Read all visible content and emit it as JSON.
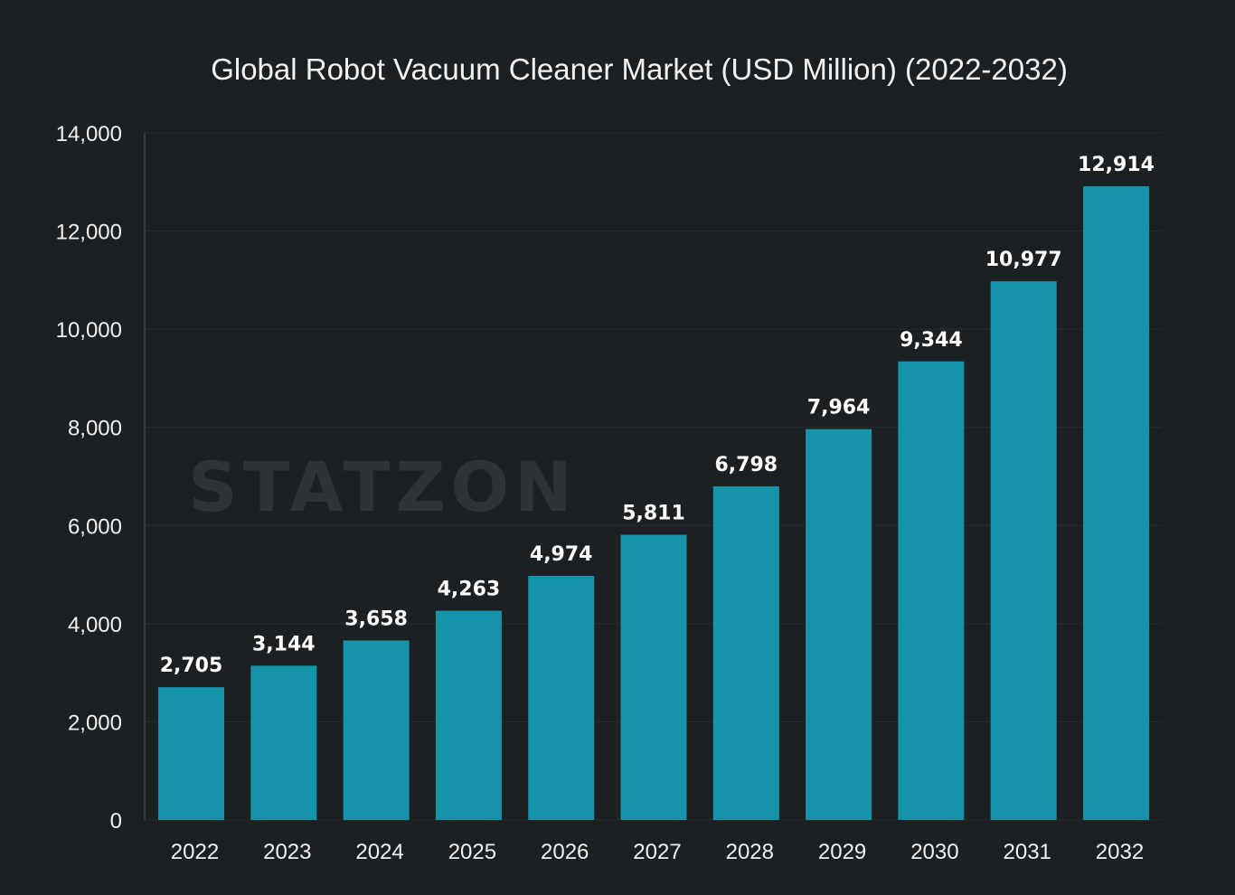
{
  "chart_data": {
    "type": "bar",
    "title": "Global Robot Vacuum Cleaner Market (USD Million) (2022-2032)",
    "xlabel": "",
    "ylabel": "",
    "categories": [
      "2022",
      "2023",
      "2024",
      "2025",
      "2026",
      "2027",
      "2028",
      "2029",
      "2030",
      "2031",
      "2032"
    ],
    "values": [
      2705,
      3144,
      3658,
      4263,
      4974,
      5811,
      6798,
      7964,
      9344,
      10977,
      12914
    ],
    "data_labels": [
      "2,705",
      "3,144",
      "3,658",
      "4,263",
      "4,974",
      "5,811",
      "6,798",
      "7,964",
      "9,344",
      "10,977",
      "12,914"
    ],
    "ylim": [
      0,
      14000
    ],
    "yticks": [
      0,
      2000,
      4000,
      6000,
      8000,
      10000,
      12000,
      14000
    ],
    "ytick_labels": [
      "0",
      "2,000",
      "4,000",
      "6,000",
      "8,000",
      "10,000",
      "12,000",
      "14,000"
    ],
    "grid": true,
    "legend": "none",
    "bar_color": "#1593a8",
    "background": "#1d2023"
  },
  "watermark": "STATZON"
}
